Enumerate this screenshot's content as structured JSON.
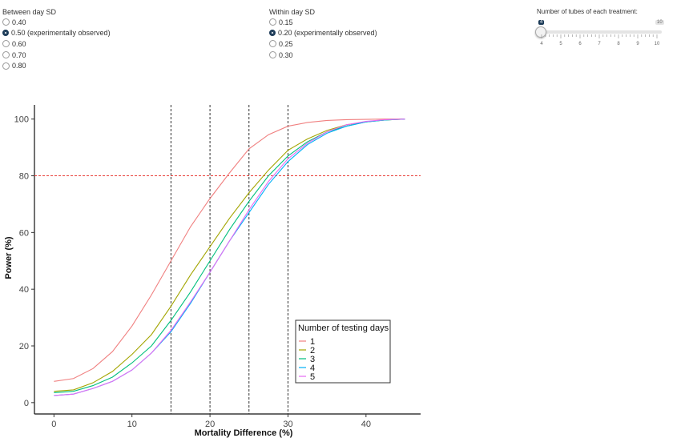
{
  "controls": {
    "between_sd": {
      "label": "Between day SD",
      "options": [
        "0.40",
        "0.50 (experimentally observed)",
        "0.60",
        "0.70",
        "0.80"
      ],
      "selected": 1
    },
    "within_sd": {
      "label": "Within day SD",
      "options": [
        "0.15",
        "0.20 (experimentally observed)",
        "0.25",
        "0.30"
      ],
      "selected": 1
    },
    "tubes": {
      "label": "Number of tubes of each treatment:",
      "min": 4,
      "max": 10,
      "value": 4,
      "min_label": "4",
      "max_label": "10",
      "tick_labels": [
        "4",
        "5",
        "6",
        "7",
        "8",
        "9",
        "10"
      ]
    }
  },
  "chart_data": {
    "type": "line",
    "xlabel": "Mortality Difference (%)",
    "ylabel": "Power (%)",
    "xlim": [
      -2.5,
      47
    ],
    "ylim": [
      -4,
      105
    ],
    "x_ticks": [
      0,
      10,
      20,
      30,
      40
    ],
    "x_tick_labels": [
      "0",
      "10",
      "20",
      "30",
      "40"
    ],
    "y_ticks": [
      0,
      20,
      40,
      60,
      80,
      100
    ],
    "y_tick_labels": [
      "0",
      "20",
      "40",
      "60",
      "80",
      "100"
    ],
    "hline": 80,
    "vlines": [
      15,
      20,
      25,
      30
    ],
    "legend_title": "Number of testing days",
    "legend_position": "bottom-right",
    "x": [
      0,
      2.5,
      5,
      7.5,
      10,
      12.5,
      15,
      17.5,
      20,
      22.5,
      25,
      27.5,
      30,
      32.5,
      35,
      37.5,
      40,
      42.5,
      45
    ],
    "series": [
      {
        "name": "1",
        "color": "#f08080",
        "values": [
          7.5,
          8.5,
          12,
          18,
          27,
          38,
          50,
          62,
          72,
          81,
          89.5,
          94.5,
          97.5,
          98.8,
          99.5,
          99.8,
          99.9,
          100,
          100
        ]
      },
      {
        "name": "2",
        "color": "#a3a500",
        "values": [
          4,
          4.5,
          7,
          11,
          17,
          24,
          34,
          45,
          55,
          65,
          74,
          82,
          89,
          93,
          96,
          98,
          99,
          99.7,
          100
        ]
      },
      {
        "name": "3",
        "color": "#00bf7d",
        "values": [
          3.5,
          4,
          6,
          9,
          14,
          20,
          29,
          39,
          50,
          61,
          71,
          80,
          87,
          92,
          95.5,
          97.5,
          99,
          99.7,
          100
        ]
      },
      {
        "name": "4",
        "color": "#00b0f6",
        "values": [
          2.5,
          3,
          5,
          7.5,
          11.5,
          17.5,
          25,
          35,
          46,
          57,
          67,
          77,
          85,
          91,
          95,
          97.5,
          99,
          99.7,
          100
        ]
      },
      {
        "name": "5",
        "color": "#e76bf3",
        "values": [
          2.5,
          3,
          5,
          7.5,
          11.5,
          17.5,
          25.5,
          35.5,
          46,
          57,
          68,
          78,
          86,
          91.5,
          95.5,
          98,
          99.2,
          99.8,
          100
        ]
      }
    ]
  }
}
